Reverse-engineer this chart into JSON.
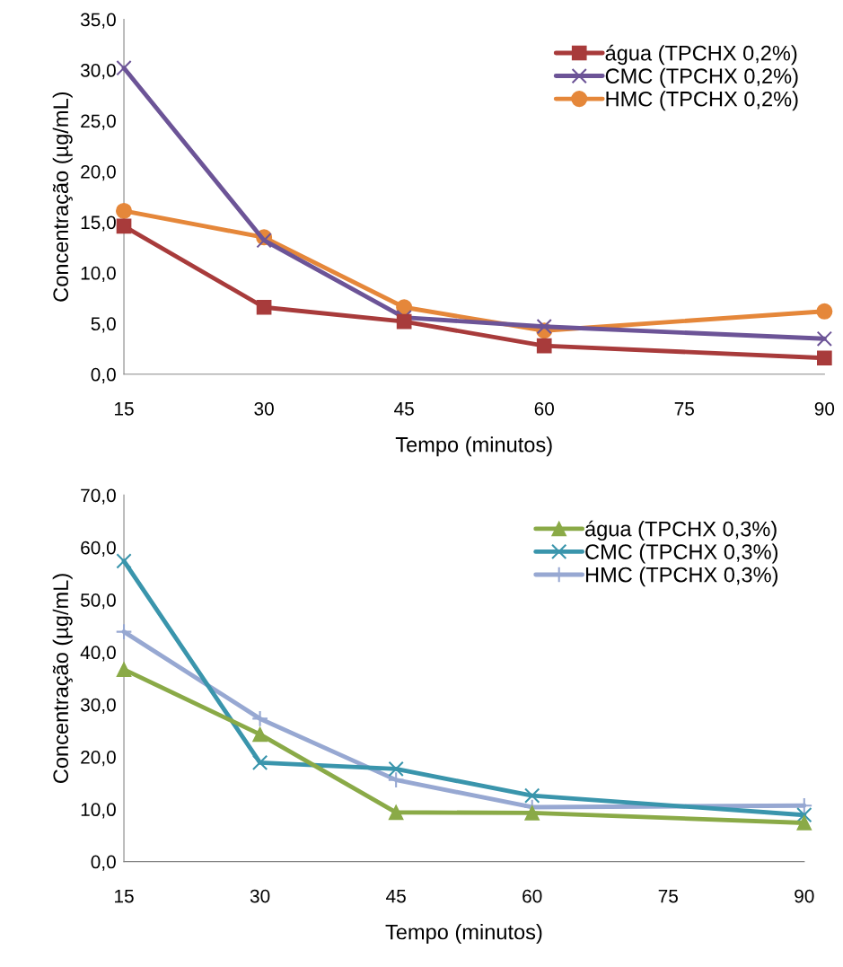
{
  "chart_data": [
    {
      "type": "line",
      "xlabel": "Tempo (minutos)",
      "ylabel": "Concentração (µg/mL)",
      "x": [
        15,
        30,
        45,
        60,
        90
      ],
      "xlim": [
        15,
        90
      ],
      "xticks": [
        15,
        30,
        45,
        60,
        75,
        90
      ],
      "ylim": [
        0,
        35
      ],
      "yticks": [
        {
          "value": 0,
          "label": "0,0"
        },
        {
          "value": 5,
          "label": "5,0"
        },
        {
          "value": 10,
          "label": "10,0"
        },
        {
          "value": 15,
          "label": "15,0"
        },
        {
          "value": 20,
          "label": "20,0"
        },
        {
          "value": 25,
          "label": "25,0"
        },
        {
          "value": 30,
          "label": "30,0"
        },
        {
          "value": 35,
          "label": "35,0"
        }
      ],
      "grid": false,
      "legend": "top right",
      "series": [
        {
          "name": "água (TPCHX 0,2%)",
          "color": "#a83b3b",
          "marker": "square",
          "values": [
            14.6,
            6.6,
            5.2,
            2.8,
            1.6
          ]
        },
        {
          "name": "CMC (TPCHX 0,2%)",
          "color": "#6c5497",
          "marker": "cross",
          "values": [
            30.2,
            13.2,
            5.6,
            4.7,
            3.5
          ]
        },
        {
          "name": "HMC (TPCHX 0,2%)",
          "color": "#e5873a",
          "marker": "circle",
          "values": [
            16.1,
            13.5,
            6.6,
            4.3,
            6.2
          ]
        }
      ]
    },
    {
      "type": "line",
      "xlabel": "Tempo (minutos)",
      "ylabel": "Concentração (µg/mL)",
      "x": [
        15,
        30,
        45,
        60,
        90
      ],
      "xlim": [
        15,
        90
      ],
      "xticks": [
        15,
        30,
        45,
        60,
        75,
        90
      ],
      "ylim": [
        0,
        70
      ],
      "yticks": [
        {
          "value": 0,
          "label": "0,0"
        },
        {
          "value": 10,
          "label": "10,0"
        },
        {
          "value": 20,
          "label": "20,0"
        },
        {
          "value": 30,
          "label": "30,0"
        },
        {
          "value": 40,
          "label": "40,0"
        },
        {
          "value": 50,
          "label": "50,0"
        },
        {
          "value": 60,
          "label": "60,0"
        },
        {
          "value": 70,
          "label": "70,0"
        }
      ],
      "grid": false,
      "legend": "top right",
      "series": [
        {
          "name": "água (TPCHX 0,3%)",
          "color": "#8aaa47",
          "marker": "triangle",
          "values": [
            36.7,
            24.3,
            9.4,
            9.3,
            7.4
          ]
        },
        {
          "name": "CMC (TPCHX 0,3%)",
          "color": "#3a95ac",
          "marker": "cross",
          "values": [
            57.4,
            18.9,
            17.7,
            12.6,
            8.9
          ]
        },
        {
          "name": "HMC (TPCHX 0,3%)",
          "color": "#97a8d2",
          "marker": "plus",
          "values": [
            43.9,
            27.3,
            15.6,
            10.4,
            10.7
          ]
        }
      ]
    }
  ]
}
